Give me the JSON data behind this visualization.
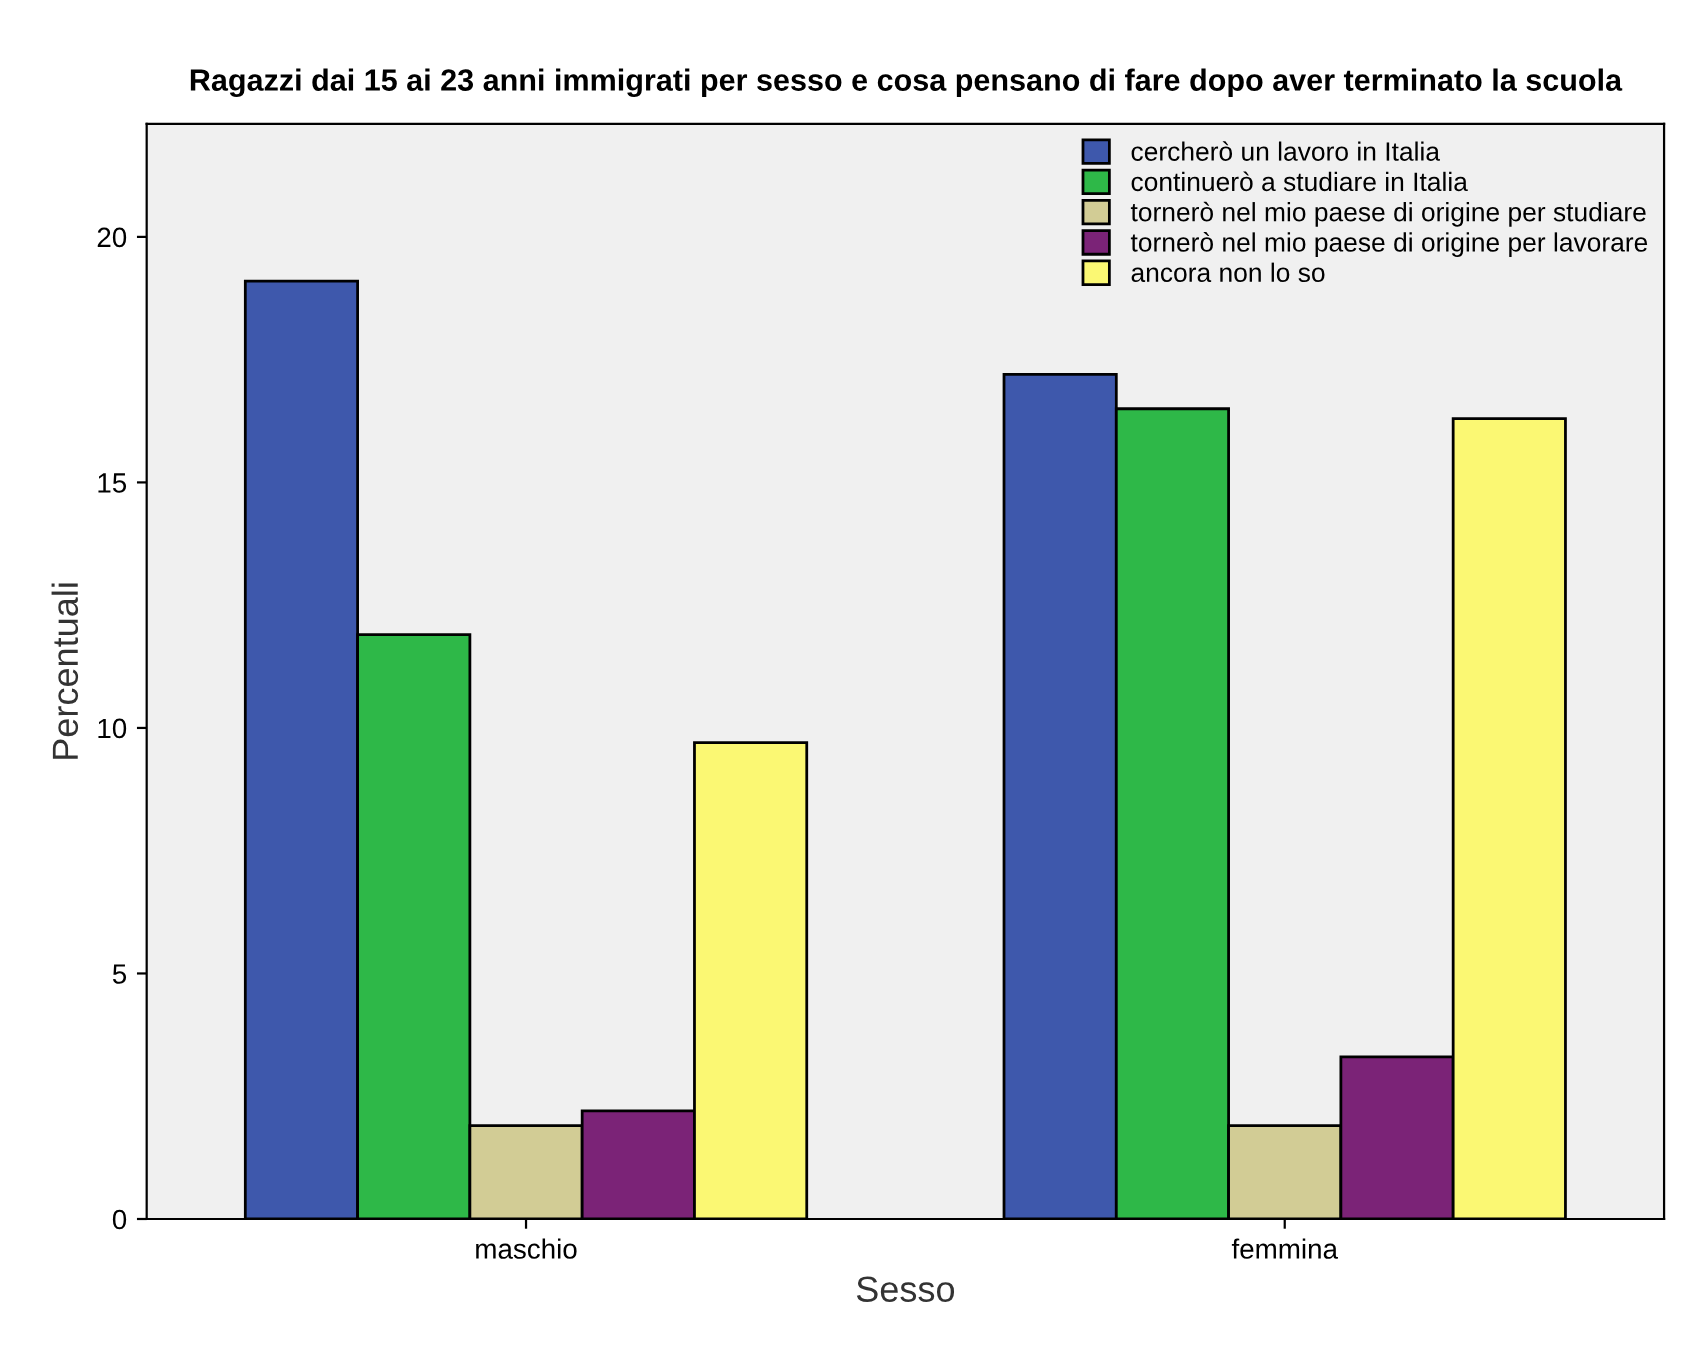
{
  "chart_data": {
    "type": "bar",
    "title": "Ragazzi dai 15 ai 23 anni immigrati per sesso e cosa pensano di fare dopo aver terminato la scuola",
    "xlabel": "Sesso",
    "ylabel": "Percentuali",
    "categories": [
      "maschio",
      "femmina"
    ],
    "series": [
      {
        "name": "cercherò un lavoro in Italia",
        "color": "#3e58ac",
        "values": [
          19.1,
          17.2
        ]
      },
      {
        "name": "continuerò a studiare in Italia",
        "color": "#2eb848",
        "values": [
          11.9,
          16.5
        ]
      },
      {
        "name": "tornerò nel mio paese di origine per studiare",
        "color": "#d2cc95",
        "values": [
          1.9,
          1.9
        ]
      },
      {
        "name": "tornerò nel mio paese di origine per lavorare",
        "color": "#7b2377",
        "values": [
          2.2,
          3.3
        ]
      },
      {
        "name": "ancora non lo so",
        "color": "#fbf873",
        "values": [
          9.7,
          16.3
        ]
      }
    ],
    "ylim": [
      0,
      22.3
    ],
    "yticks": [
      0,
      5,
      10,
      15,
      20
    ],
    "grid": false,
    "legend": "top right"
  }
}
